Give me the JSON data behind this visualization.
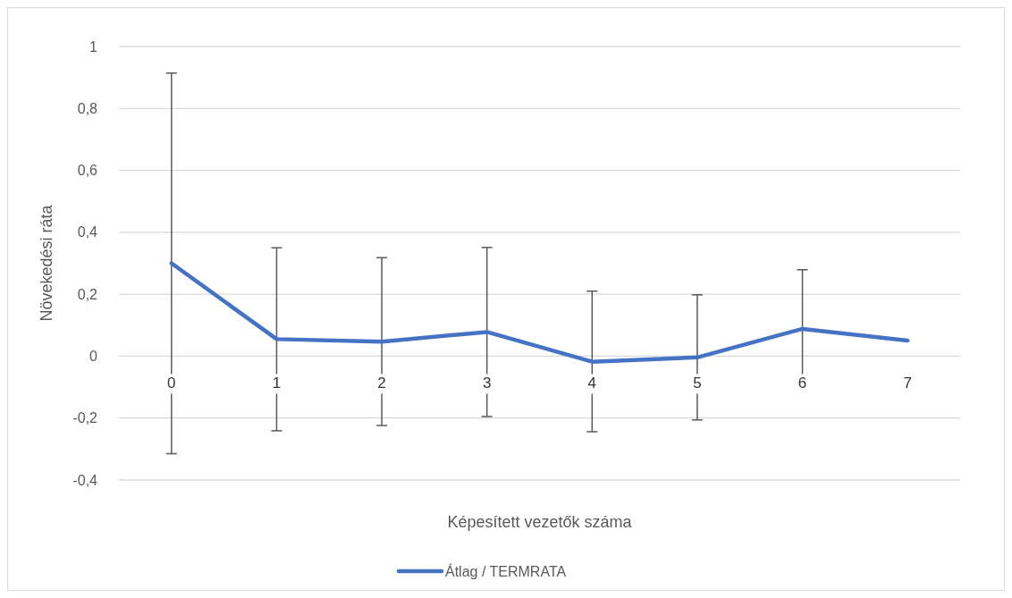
{
  "chart_data": {
    "type": "line",
    "xlabel": "Képesített vezetők száma",
    "ylabel": "Növekedési ráta",
    "categories": [
      "0",
      "1",
      "2",
      "3",
      "4",
      "5",
      "6",
      "7"
    ],
    "series": [
      {
        "name": "Átlag / TERMRATA",
        "color": "#4472c4",
        "values": [
          0.3,
          0.055,
          0.047,
          0.078,
          -0.018,
          -0.004,
          0.088,
          0.05
        ],
        "errors": [
          [
            -0.315,
            0.914
          ],
          [
            -0.241,
            0.35
          ],
          [
            -0.224,
            0.318
          ],
          [
            -0.195,
            0.351
          ],
          [
            -0.244,
            0.21
          ],
          [
            -0.206,
            0.198
          ],
          [
            -0.104,
            0.279
          ],
          null
        ]
      }
    ],
    "ylim": [
      -0.4,
      1
    ],
    "yticks": [
      {
        "value": -0.4,
        "label": "-0,4"
      },
      {
        "value": -0.2,
        "label": "-0,2"
      },
      0,
      {
        "value": 0.2,
        "label": "0,2"
      },
      {
        "value": 0.4,
        "label": "0,4"
      },
      {
        "value": 0.6,
        "label": "0,6"
      },
      {
        "value": 0.8,
        "label": "0,8"
      },
      1
    ],
    "grid": "y",
    "legend": "bottom",
    "marker": "none",
    "line_style": "solid"
  }
}
